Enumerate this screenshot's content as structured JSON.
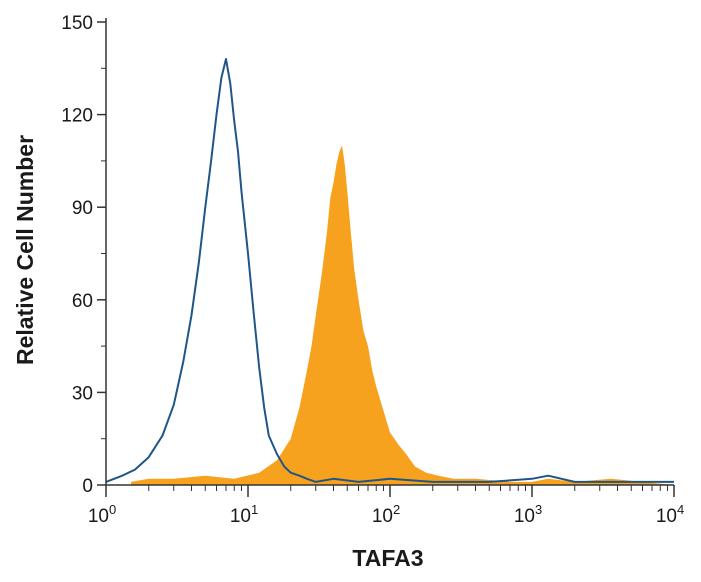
{
  "chart_data": {
    "type": "area",
    "xscale": "log",
    "xlim": [
      1,
      10000
    ],
    "ylim": [
      0,
      150
    ],
    "xlabel": "TAFA3",
    "ylabel": "Relative Cell Number",
    "x_ticks": [
      {
        "base": "10",
        "exp": "0",
        "value": 1
      },
      {
        "base": "10",
        "exp": "1",
        "value": 10
      },
      {
        "base": "10",
        "exp": "2",
        "value": 100
      },
      {
        "base": "10",
        "exp": "3",
        "value": 1000
      },
      {
        "base": "10",
        "exp": "4",
        "value": 10000
      }
    ],
    "y_ticks": [
      "0",
      "30",
      "60",
      "90",
      "120",
      "150"
    ],
    "grid": false,
    "colors": {
      "filled": "#f7a21e",
      "outline": "#1f5687",
      "axis": "#333333"
    },
    "series": [
      {
        "style": "filled",
        "x": [
          1.5,
          2,
          3,
          5,
          8,
          12,
          16,
          20,
          23,
          26,
          28,
          30,
          33,
          36,
          38,
          40,
          42,
          44,
          46,
          48,
          50,
          53,
          56,
          60,
          65,
          70,
          75,
          80,
          90,
          100,
          115,
          130,
          150,
          180,
          220,
          280,
          400,
          700,
          1000,
          1300,
          2000,
          3600,
          6000,
          10000
        ],
        "y": [
          1,
          2,
          2,
          3,
          2,
          4,
          8,
          15,
          25,
          37,
          45,
          55,
          68,
          82,
          93,
          98,
          104,
          108,
          110,
          104,
          95,
          82,
          70,
          60,
          50,
          45,
          37,
          32,
          24,
          17,
          13,
          10,
          6,
          4,
          3,
          2,
          2,
          1,
          1,
          2,
          1,
          2,
          1,
          0
        ]
      },
      {
        "style": "outline",
        "x": [
          1,
          1.3,
          1.6,
          2,
          2.5,
          3,
          3.5,
          4,
          4.5,
          5,
          5.5,
          6,
          6.5,
          7,
          7.5,
          8,
          8.5,
          9,
          10,
          11,
          12,
          13,
          14,
          16,
          18,
          20,
          23,
          26,
          30,
          40,
          60,
          100,
          200,
          500,
          1000,
          1300,
          2000,
          5000,
          10000
        ],
        "y": [
          1,
          3,
          5,
          9,
          16,
          26,
          40,
          55,
          72,
          90,
          105,
          120,
          132,
          138,
          130,
          118,
          108,
          95,
          75,
          55,
          38,
          25,
          16,
          10,
          6,
          4,
          3,
          2,
          1,
          2,
          1,
          2,
          1,
          1,
          2,
          3,
          1,
          1,
          1
        ]
      }
    ]
  }
}
